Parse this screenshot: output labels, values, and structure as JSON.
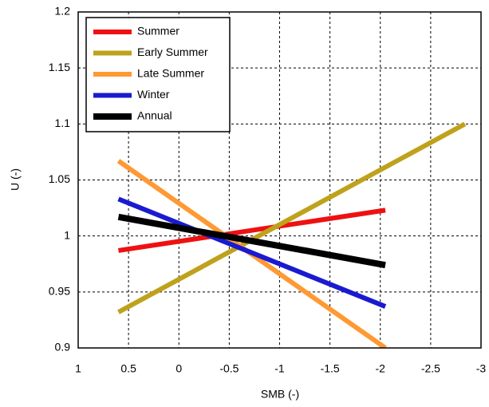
{
  "chart_data": {
    "type": "line",
    "x_label": "SMB (-)",
    "y_label": "U (-)",
    "xlim": [
      1,
      -3
    ],
    "xticks": [
      1,
      0.5,
      0,
      -0.5,
      -1,
      -1.5,
      -2,
      -2.5,
      -3
    ],
    "ylim": [
      0.9,
      1.2
    ],
    "yticks": [
      0.9,
      0.95,
      1,
      1.05,
      1.1,
      1.15,
      1.2
    ],
    "grid": true,
    "legend": "upper left",
    "series": [
      {
        "name": "Summer",
        "color": "#ee1111",
        "x": [
          0.6,
          -2.05
        ],
        "values": [
          0.987,
          1.023
        ]
      },
      {
        "name": "Early Summer",
        "color": "#bfa21c",
        "x": [
          0.6,
          -2.84
        ],
        "values": [
          0.932,
          1.1
        ]
      },
      {
        "name": "Late Summer",
        "color": "#ff9933",
        "x": [
          0.6,
          -2.05
        ],
        "values": [
          1.067,
          0.9
        ]
      },
      {
        "name": "Winter",
        "color": "#1a1ad0",
        "x": [
          0.6,
          -2.05
        ],
        "values": [
          1.033,
          0.937
        ]
      },
      {
        "name": "Annual",
        "color": "#000000",
        "x": [
          0.6,
          -2.05
        ],
        "values": [
          1.017,
          0.974
        ]
      }
    ]
  }
}
